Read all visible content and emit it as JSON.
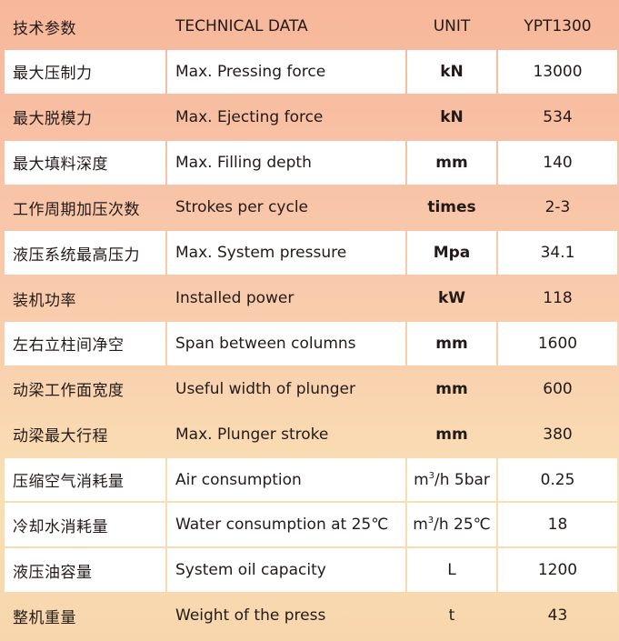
{
  "header": {
    "col_zh": "技术参数",
    "col_en": "TECHNICAL DATA",
    "col_unit": "UNIT",
    "col_model": "YPT1300"
  },
  "rows": [
    {
      "zh": "最大压制力",
      "en": "Max. Pressing force",
      "unit": "kN",
      "value": "13000"
    },
    {
      "zh": "最大脱模力",
      "en": "Max. Ejecting force",
      "unit": "kN",
      "value": "534"
    },
    {
      "zh": "最大填料深度",
      "en": "Max. Filling depth",
      "unit": "mm",
      "value": "140"
    },
    {
      "zh": "工作周期加压次数",
      "en": "Strokes per cycle",
      "unit": "times",
      "value": "2-3"
    },
    {
      "zh": "液压系统最高压力",
      "en": "Max. System pressure",
      "unit": "Mpa",
      "value": "34.1"
    },
    {
      "zh": "装机功率",
      "en": "Installed power",
      "unit": "kW",
      "value": "118"
    },
    {
      "zh": "左右立柱间净空",
      "en": "Span between columns",
      "unit": "mm",
      "value": "1600"
    },
    {
      "zh": "动梁工作面宽度",
      "en": "Useful width of plunger",
      "unit": "mm",
      "value": "600"
    },
    {
      "zh": "动梁最大行程",
      "en": "Max. Plunger stroke",
      "unit": "mm",
      "value": "380"
    },
    {
      "zh": "压缩空气消耗量",
      "en": "Air consumption",
      "unit_base": "m",
      "unit_sup": "3",
      "unit_rest": "/h 5bar",
      "value": "0.25"
    },
    {
      "zh": "冷却水消耗量",
      "en": "Water consumption at 25℃",
      "unit_base": "m",
      "unit_sup": "3",
      "unit_rest": "/h 25℃",
      "value": "18"
    },
    {
      "zh": "液压油容量",
      "en": "System oil capacity",
      "unit": "L",
      "value": "1200"
    },
    {
      "zh": "整机重量",
      "en": "Weight of the press",
      "unit": "t",
      "value": "43"
    }
  ],
  "colors": {
    "header_tint": "#f7b79a",
    "row_tint": "#f9c8ab",
    "row_tint_bottom": "#f9dfb4",
    "cell_white": "#ffffff",
    "text": "#231a18"
  }
}
